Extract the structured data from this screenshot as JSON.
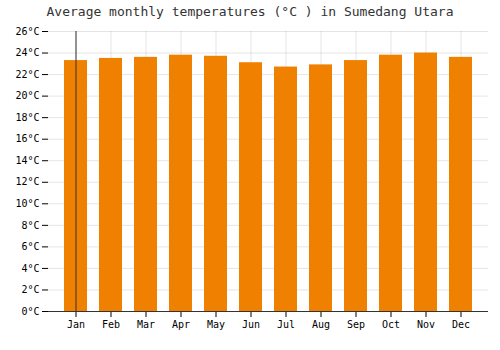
{
  "chart_data": {
    "type": "bar",
    "title": "Average monthly temperatures (°C ) in Sumedang Utara",
    "categories": [
      "Jan",
      "Feb",
      "Mar",
      "Apr",
      "May",
      "Jun",
      "Jul",
      "Aug",
      "Sep",
      "Oct",
      "Nov",
      "Dec"
    ],
    "values": [
      23.3,
      23.5,
      23.6,
      23.8,
      23.7,
      23.1,
      22.7,
      22.9,
      23.3,
      23.8,
      24.0,
      23.6
    ],
    "color": "#F08000",
    "ylim": [
      0,
      26
    ],
    "yticks": [
      {
        "value": 0,
        "label": "0°C"
      },
      {
        "value": 2,
        "label": "2°C"
      },
      {
        "value": 4,
        "label": "4°C"
      },
      {
        "value": 6,
        "label": "6°C"
      },
      {
        "value": 8,
        "label": "8°C"
      },
      {
        "value": 10,
        "label": "10°C"
      },
      {
        "value": 12,
        "label": "12°C"
      },
      {
        "value": 14,
        "label": "14°C"
      },
      {
        "value": 16,
        "label": "16°C"
      },
      {
        "value": 18,
        "label": "18°C"
      },
      {
        "value": 20,
        "label": "20°C"
      },
      {
        "value": 22,
        "label": "22°C"
      },
      {
        "value": 24,
        "label": "24°C"
      },
      {
        "value": 26,
        "label": "26°C"
      }
    ],
    "grid": true
  }
}
